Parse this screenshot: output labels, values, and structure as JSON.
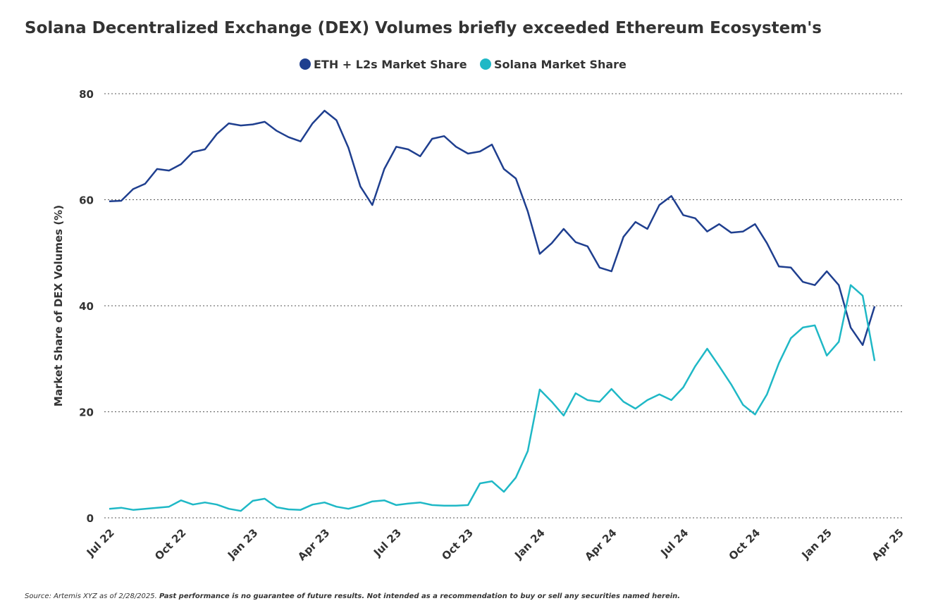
{
  "chart_data": {
    "type": "line",
    "title": "Solana Decentralized Exchange (DEX) Volumes briefly exceeded Ethereum Ecosystem's",
    "y_label": "Market Share of DEX Volumes (%)",
    "source": "Source: Artemis XYZ as of 2/28/2025.",
    "disclaimer": "Past performance is no guarantee of future results. Not intended as a recommendation to buy or sell any securities named herein.",
    "categories": [
      "Jul 22",
      null,
      null,
      null,
      null,
      null,
      "Oct 22",
      null,
      null,
      null,
      null,
      null,
      "Jan 23",
      null,
      null,
      null,
      null,
      null,
      "Apr 23",
      null,
      null,
      null,
      null,
      null,
      "Jul 23",
      null,
      null,
      null,
      null,
      null,
      "Oct 23",
      null,
      null,
      null,
      null,
      null,
      "Jan 24",
      null,
      null,
      null,
      null,
      null,
      "Apr 24",
      null,
      null,
      null,
      null,
      null,
      "Jul 24",
      null,
      null,
      null,
      null,
      null,
      "Oct 24",
      null,
      null,
      null,
      null,
      null,
      "Jan 25",
      null,
      null,
      null,
      null,
      null,
      "Apr 25"
    ],
    "series": [
      {
        "name": "ETH + L2s Market Share",
        "color": "#1f3f8f",
        "values": [
          59.7,
          59.8,
          62,
          63,
          65.8,
          65.5,
          66.7,
          69,
          69.5,
          72.4,
          74.4,
          74,
          74.2,
          74.7,
          73,
          71.8,
          71,
          74.4,
          76.8,
          75,
          69.8,
          62.5,
          59,
          65.8,
          70,
          69.5,
          68.2,
          71.5,
          72,
          70,
          68.7,
          69.1,
          70.4,
          65.8,
          64,
          57.8,
          49.8,
          51.8,
          54.5,
          52,
          51.2,
          47.2,
          46.5,
          53,
          55.8,
          54.5,
          59,
          60.7,
          57.1,
          56.5,
          54,
          55.4,
          53.8,
          54,
          55.4,
          51.8,
          47.4,
          47.2,
          44.5,
          43.9,
          46.5,
          43.9,
          35.9,
          32.6,
          39.9,
          null,
          null
        ]
      },
      {
        "name": "Solana Market Share",
        "color": "#1fb8c6",
        "values": [
          1.7,
          1.9,
          1.5,
          1.7,
          1.9,
          2.1,
          3.3,
          2.5,
          2.9,
          2.5,
          1.7,
          1.3,
          3.2,
          3.6,
          2.0,
          1.6,
          1.5,
          2.5,
          2.9,
          2.1,
          1.7,
          2.3,
          3.1,
          3.3,
          2.4,
          2.7,
          2.9,
          2.4,
          2.3,
          2.3,
          2.4,
          6.5,
          6.9,
          4.9,
          7.6,
          12.6,
          24.2,
          21.9,
          19.3,
          23.5,
          22.2,
          21.9,
          24.3,
          21.9,
          20.6,
          22.2,
          23.3,
          22.2,
          24.6,
          28.6,
          31.9,
          28.6,
          25.2,
          21.3,
          19.5,
          23.3,
          29.2,
          33.9,
          35.9,
          36.3,
          30.6,
          33.2,
          43.9,
          41.9,
          29.6,
          null,
          null
        ]
      }
    ],
    "ylim": [
      0,
      80
    ],
    "yticks": [
      0,
      20,
      40,
      60,
      80
    ],
    "grid": true
  }
}
